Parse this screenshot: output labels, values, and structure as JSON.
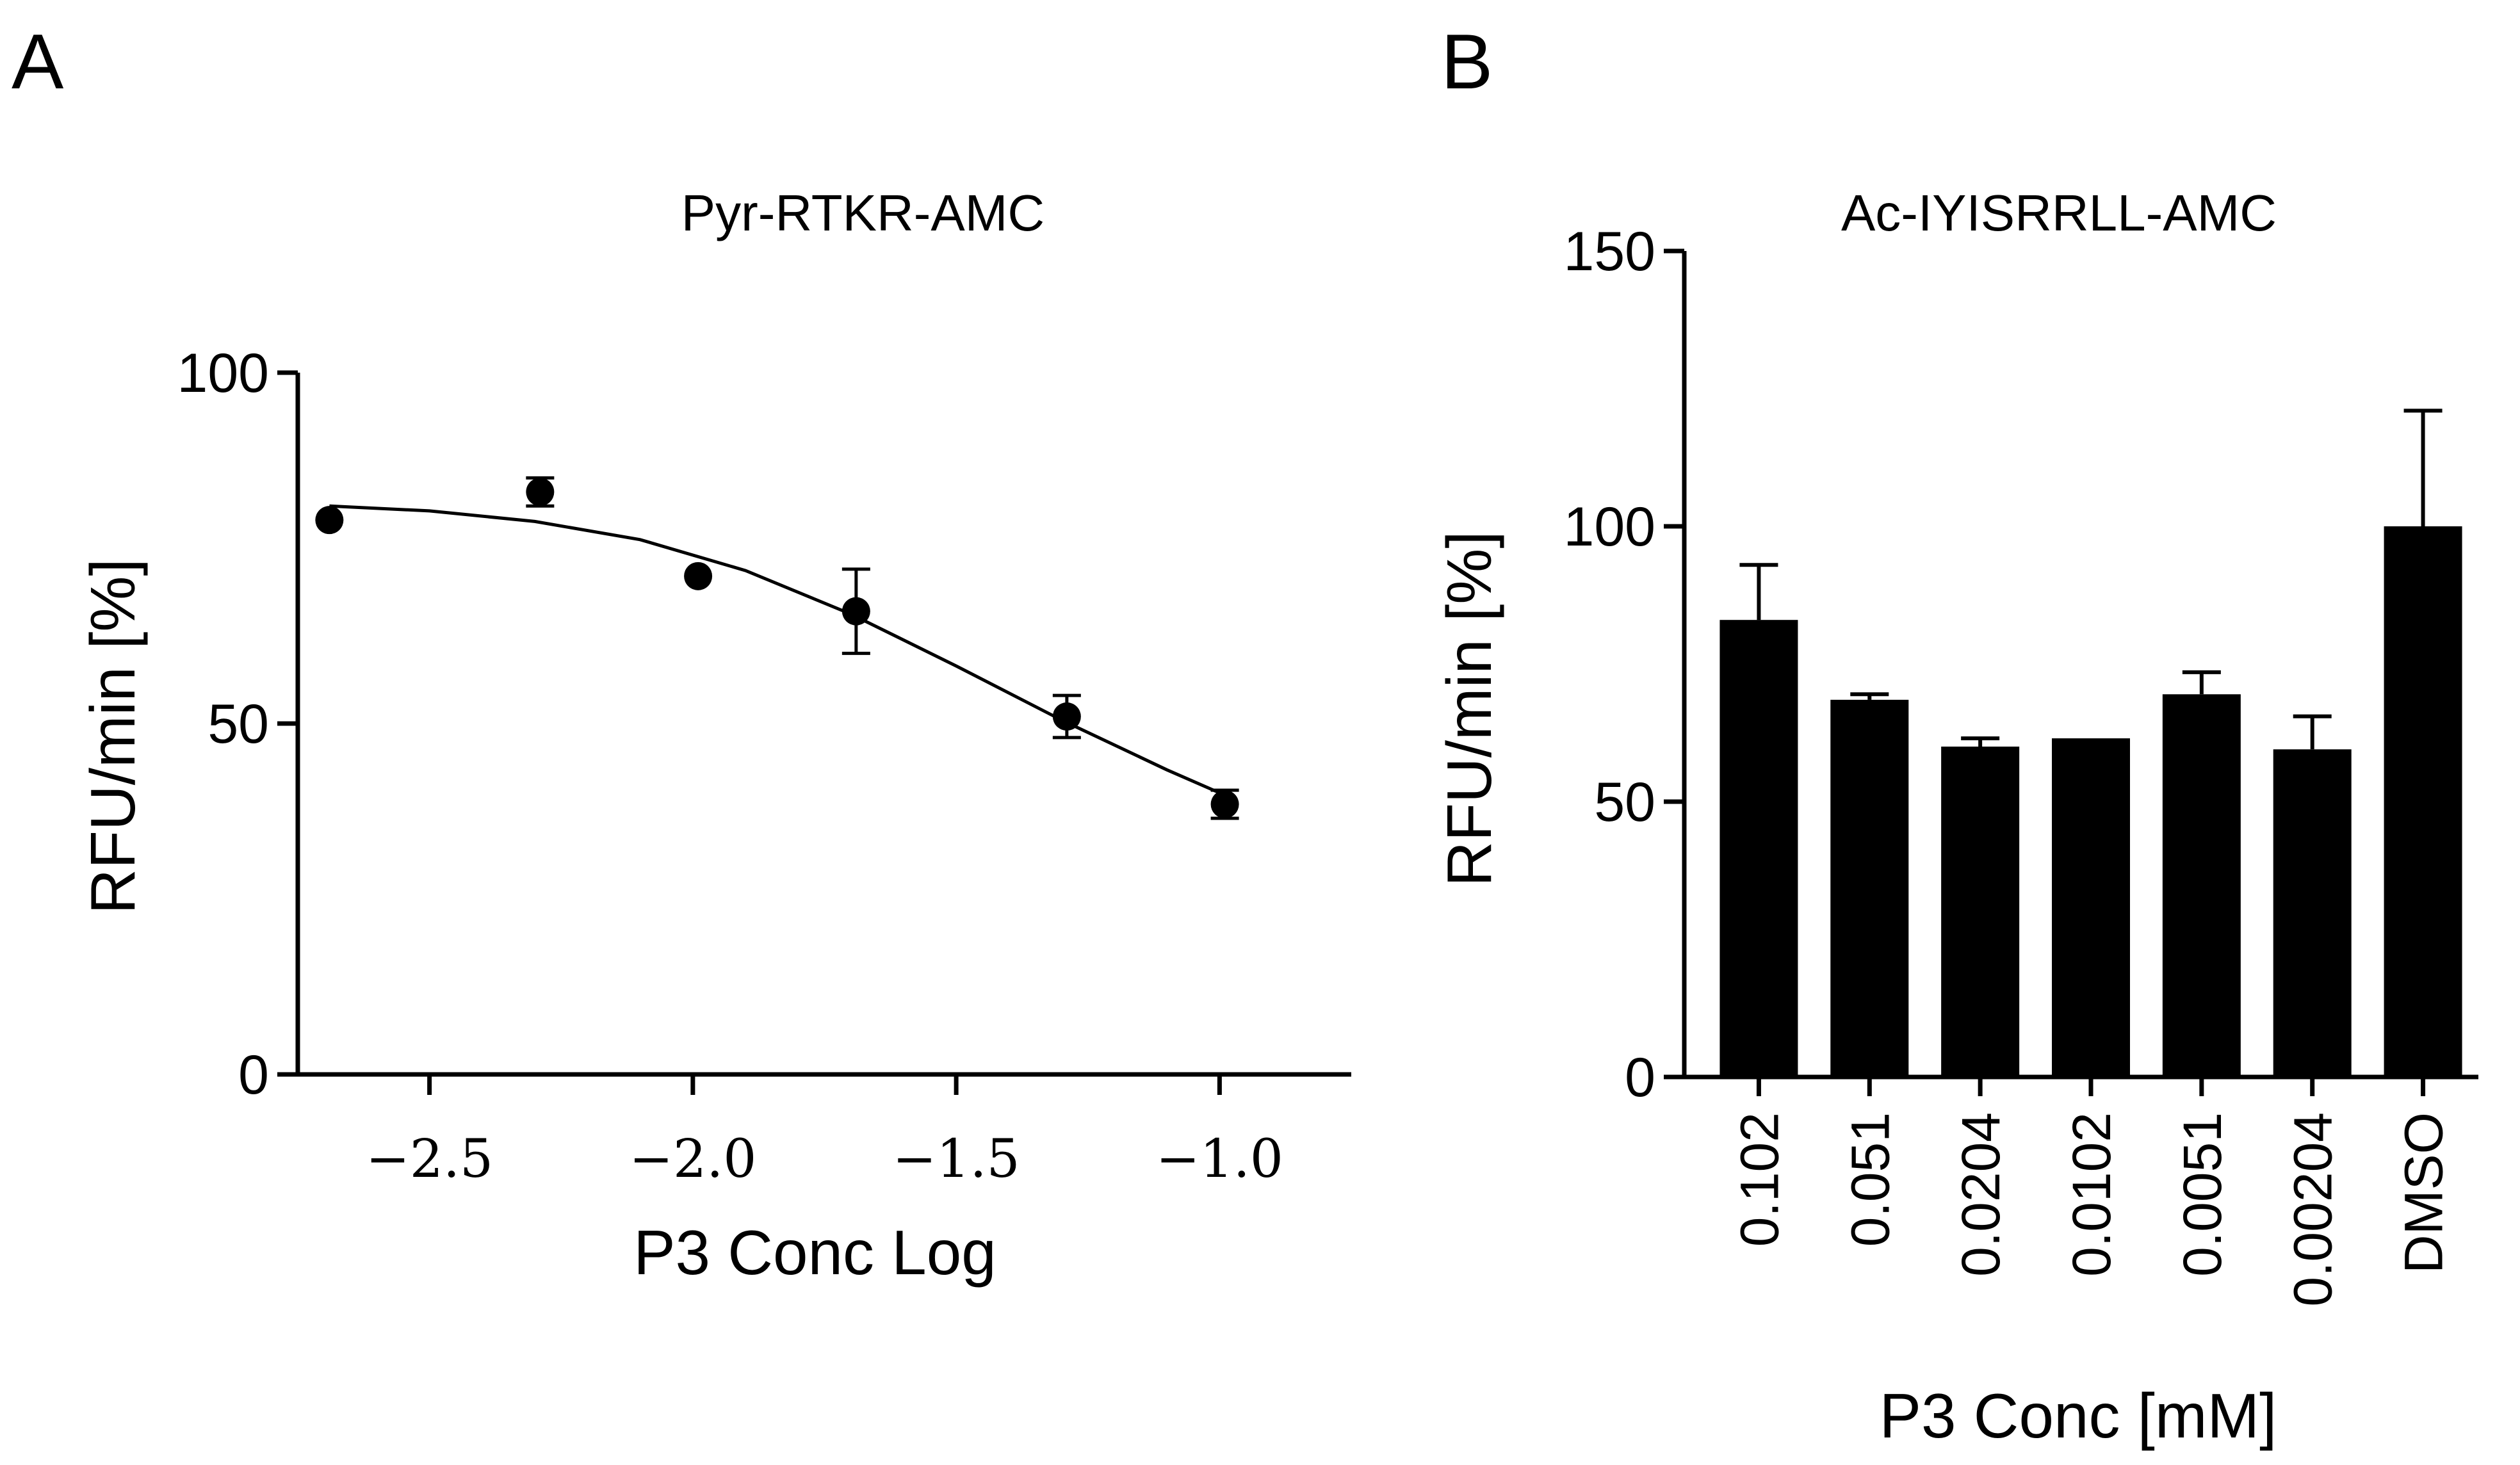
{
  "panels": {
    "a_label": "A",
    "b_label": "B"
  },
  "chart_data": [
    {
      "type": "scatter",
      "title": "Pyr-RTKR-AMC",
      "xlabel": "P3 Conc Log",
      "ylabel": "RFU/min [%]",
      "xlim": [
        -2.75,
        -0.75
      ],
      "ylim": [
        0,
        100
      ],
      "xticks": [
        -2.5,
        -2.0,
        -1.5,
        -1.0
      ],
      "xtick_labels": [
        "−2.5",
        "−2.0",
        "−1.5",
        "−1.0"
      ],
      "yticks": [
        0,
        50,
        100
      ],
      "ytick_labels": [
        "0",
        "50",
        "100"
      ],
      "color": "#000000",
      "points": [
        {
          "x": -2.69,
          "y": 79,
          "err": 0
        },
        {
          "x": -2.29,
          "y": 83,
          "err": 2
        },
        {
          "x": -1.99,
          "y": 71,
          "err": 0
        },
        {
          "x": -1.69,
          "y": 66,
          "err": 6
        },
        {
          "x": -1.29,
          "y": 51,
          "err": 3
        },
        {
          "x": -0.99,
          "y": 38.5,
          "err": 2
        }
      ],
      "fit": {
        "x": [
          -2.69,
          -2.5,
          -2.3,
          -2.1,
          -1.9,
          -1.7,
          -1.5,
          -1.3,
          -1.1,
          -0.99
        ],
        "y": [
          81,
          80.3,
          78.8,
          76.2,
          71.8,
          65.6,
          58.2,
          50.5,
          43.4,
          39.8
        ]
      }
    },
    {
      "type": "bar",
      "title": "Ac-IYISRRLL-AMC",
      "xlabel": "P3 Conc [mM]",
      "ylabel": "RFU/min [%]",
      "ylim": [
        0,
        150
      ],
      "yticks": [
        0,
        50,
        100,
        150
      ],
      "ytick_labels": [
        "0",
        "50",
        "100",
        "150"
      ],
      "color": "#000000",
      "categories": [
        "0.102",
        "0.051",
        "0.0204",
        "0.0102",
        "0.0051",
        "0.00204",
        "DMSO"
      ],
      "values": [
        83,
        68.5,
        60,
        61.5,
        69.5,
        59.5,
        100
      ],
      "errors": [
        10,
        1,
        1.5,
        0,
        4,
        6,
        21
      ]
    }
  ]
}
